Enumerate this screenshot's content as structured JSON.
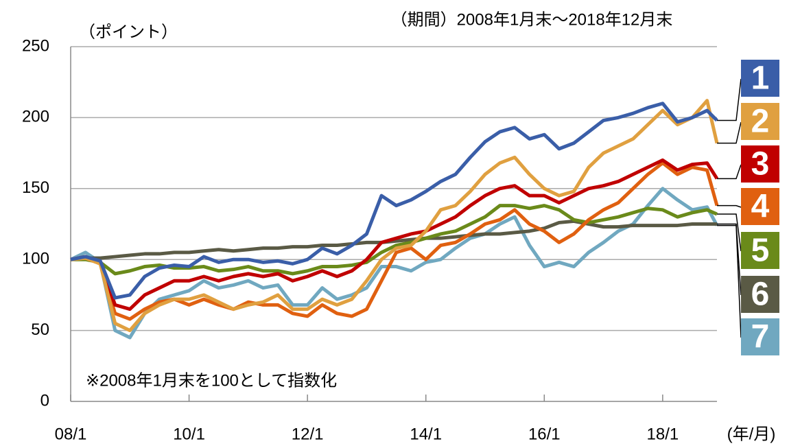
{
  "chart_data": {
    "type": "line",
    "title": "（期間）2008年1月末～2018年12月末",
    "y_label": "（ポイント）",
    "x_label": "(年/月)",
    "annotation": "※2008年1月末を100として指数化",
    "xlim": [
      2008,
      2018.917
    ],
    "ylim": [
      0,
      250
    ],
    "yticks": [
      0,
      50,
      100,
      150,
      200,
      250
    ],
    "xticks": [
      {
        "value": 2008,
        "label": "08/1"
      },
      {
        "value": 2010,
        "label": "10/1"
      },
      {
        "value": 2012,
        "label": "12/1"
      },
      {
        "value": 2014,
        "label": "14/1"
      },
      {
        "value": 2016,
        "label": "16/1"
      },
      {
        "value": 2018,
        "label": "18/1"
      }
    ],
    "grid": true,
    "x": [
      2008,
      2008.25,
      2008.5,
      2008.75,
      2009,
      2009.25,
      2009.5,
      2009.75,
      2010,
      2010.25,
      2010.5,
      2010.75,
      2011,
      2011.25,
      2011.5,
      2011.75,
      2012,
      2012.25,
      2012.5,
      2012.75,
      2013,
      2013.25,
      2013.5,
      2013.75,
      2014,
      2014.25,
      2014.5,
      2014.75,
      2015,
      2015.25,
      2015.5,
      2015.75,
      2016,
      2016.25,
      2016.5,
      2016.75,
      2017,
      2017.25,
      2017.5,
      2017.75,
      2018,
      2018.25,
      2018.5,
      2018.75,
      2018.917
    ],
    "series": [
      {
        "name": "1",
        "color": "#3a5ea8",
        "values": [
          100,
          102,
          99,
          73,
          75,
          88,
          94,
          96,
          95,
          102,
          98,
          100,
          100,
          98,
          99,
          97,
          100,
          108,
          104,
          110,
          118,
          145,
          138,
          142,
          148,
          155,
          160,
          172,
          183,
          190,
          193,
          185,
          188,
          178,
          182,
          190,
          198,
          200,
          203,
          207,
          210,
          197,
          200,
          205,
          198
        ]
      },
      {
        "name": "2",
        "color": "#e0a040",
        "values": [
          100,
          101,
          97,
          55,
          50,
          62,
          68,
          72,
          72,
          75,
          70,
          65,
          68,
          70,
          75,
          65,
          65,
          72,
          68,
          72,
          85,
          100,
          108,
          110,
          120,
          135,
          138,
          148,
          160,
          168,
          172,
          160,
          150,
          145,
          148,
          165,
          175,
          180,
          185,
          195,
          205,
          195,
          200,
          212,
          182
        ]
      },
      {
        "name": "3",
        "color": "#c00000",
        "values": [
          100,
          102,
          98,
          68,
          65,
          75,
          80,
          85,
          85,
          88,
          85,
          88,
          90,
          88,
          90,
          85,
          88,
          92,
          88,
          92,
          100,
          112,
          115,
          118,
          120,
          125,
          130,
          138,
          145,
          150,
          152,
          145,
          145,
          140,
          145,
          150,
          152,
          155,
          160,
          165,
          170,
          163,
          167,
          168,
          157
        ]
      },
      {
        "name": "4",
        "color": "#e06010",
        "values": [
          100,
          101,
          97,
          62,
          58,
          65,
          70,
          72,
          68,
          72,
          68,
          65,
          70,
          68,
          68,
          62,
          60,
          68,
          62,
          60,
          65,
          85,
          105,
          108,
          100,
          110,
          112,
          118,
          125,
          128,
          135,
          125,
          120,
          112,
          118,
          128,
          135,
          140,
          150,
          160,
          168,
          160,
          165,
          163,
          138
        ]
      },
      {
        "name": "5",
        "color": "#6a8a1a",
        "values": [
          100,
          100,
          98,
          90,
          92,
          95,
          96,
          94,
          94,
          95,
          92,
          93,
          95,
          92,
          92,
          90,
          92,
          95,
          95,
          96,
          98,
          105,
          110,
          112,
          115,
          118,
          120,
          125,
          130,
          138,
          138,
          136,
          138,
          135,
          128,
          126,
          128,
          130,
          133,
          136,
          135,
          130,
          133,
          135,
          132
        ]
      },
      {
        "name": "6",
        "color": "#5a5a45",
        "values": [
          100,
          101,
          101,
          102,
          103,
          104,
          104,
          105,
          105,
          106,
          107,
          106,
          107,
          108,
          108,
          109,
          109,
          110,
          110,
          111,
          112,
          112,
          113,
          114,
          115,
          115,
          116,
          117,
          118,
          118,
          119,
          120,
          122,
          126,
          127,
          125,
          123,
          123,
          124,
          124,
          124,
          124,
          125,
          125,
          125
        ]
      },
      {
        "name": "7",
        "color": "#70a8c0",
        "values": [
          100,
          105,
          98,
          50,
          45,
          62,
          72,
          75,
          78,
          85,
          80,
          82,
          85,
          80,
          82,
          68,
          68,
          80,
          72,
          75,
          80,
          95,
          95,
          92,
          98,
          100,
          108,
          115,
          118,
          125,
          130,
          110,
          95,
          98,
          95,
          105,
          112,
          120,
          125,
          138,
          150,
          142,
          135,
          137,
          124
        ]
      }
    ]
  }
}
